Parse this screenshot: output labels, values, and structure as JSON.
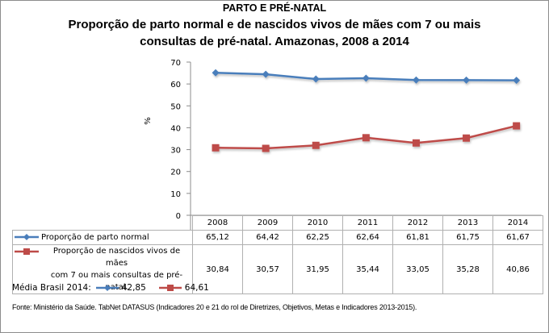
{
  "header": {
    "section_title": "PARTO E PRÉ-NATAL",
    "title_line1": "Proporção de parto normal e de nascidos vivos de mães com 7 ou mais",
    "title_line2": "consultas de pré-natal. Amazonas, 2008 a 2014"
  },
  "chart_data": {
    "type": "line",
    "title": "Proporção de parto normal e de nascidos vivos de mães com 7 ou mais consultas de pré-natal. Amazonas, 2008 a 2014",
    "xlabel": "",
    "ylabel": "%",
    "ylim": [
      0,
      70
    ],
    "yticks": [
      "0",
      "10",
      "20",
      "30",
      "40",
      "50",
      "60",
      "70"
    ],
    "categories": [
      "2008",
      "2009",
      "2010",
      "2011",
      "2012",
      "2013",
      "2014"
    ],
    "grid": false,
    "legend": "data-table-bottom",
    "series": [
      {
        "name": "Proporção de parto normal",
        "color": "#4a7ebb",
        "marker": "diamond",
        "values": [
          65.12,
          64.42,
          62.25,
          62.64,
          61.81,
          61.75,
          61.67
        ],
        "labels": [
          "65,12",
          "64,42",
          "62,25",
          "62,64",
          "61,81",
          "61,75",
          "61,67"
        ]
      },
      {
        "name_line1": "Proporção de nascidos vivos de mães",
        "name_line2": "com 7 ou mais consultas de pré-natal.",
        "name": "Proporção de nascidos vivos de mães com 7 ou mais consultas de pré-natal.",
        "color": "#be4b48",
        "marker": "square",
        "values": [
          30.84,
          30.57,
          31.95,
          35.44,
          33.05,
          35.28,
          40.86
        ],
        "labels": [
          "30,84",
          "30,57",
          "31,95",
          "35,44",
          "33,05",
          "35,28",
          "40,86"
        ]
      }
    ]
  },
  "footer": {
    "media_label": "Média Brasil 2014:",
    "media_series1_value": "42,85",
    "media_series2_value": "64,61",
    "fonte": "Fonte: Ministério da Saúde. TabNet DATASUS (Indicadores 20 e 21 do rol de Diretrizes, Objetivos, Metas e Indicadores 2013-2015)."
  }
}
